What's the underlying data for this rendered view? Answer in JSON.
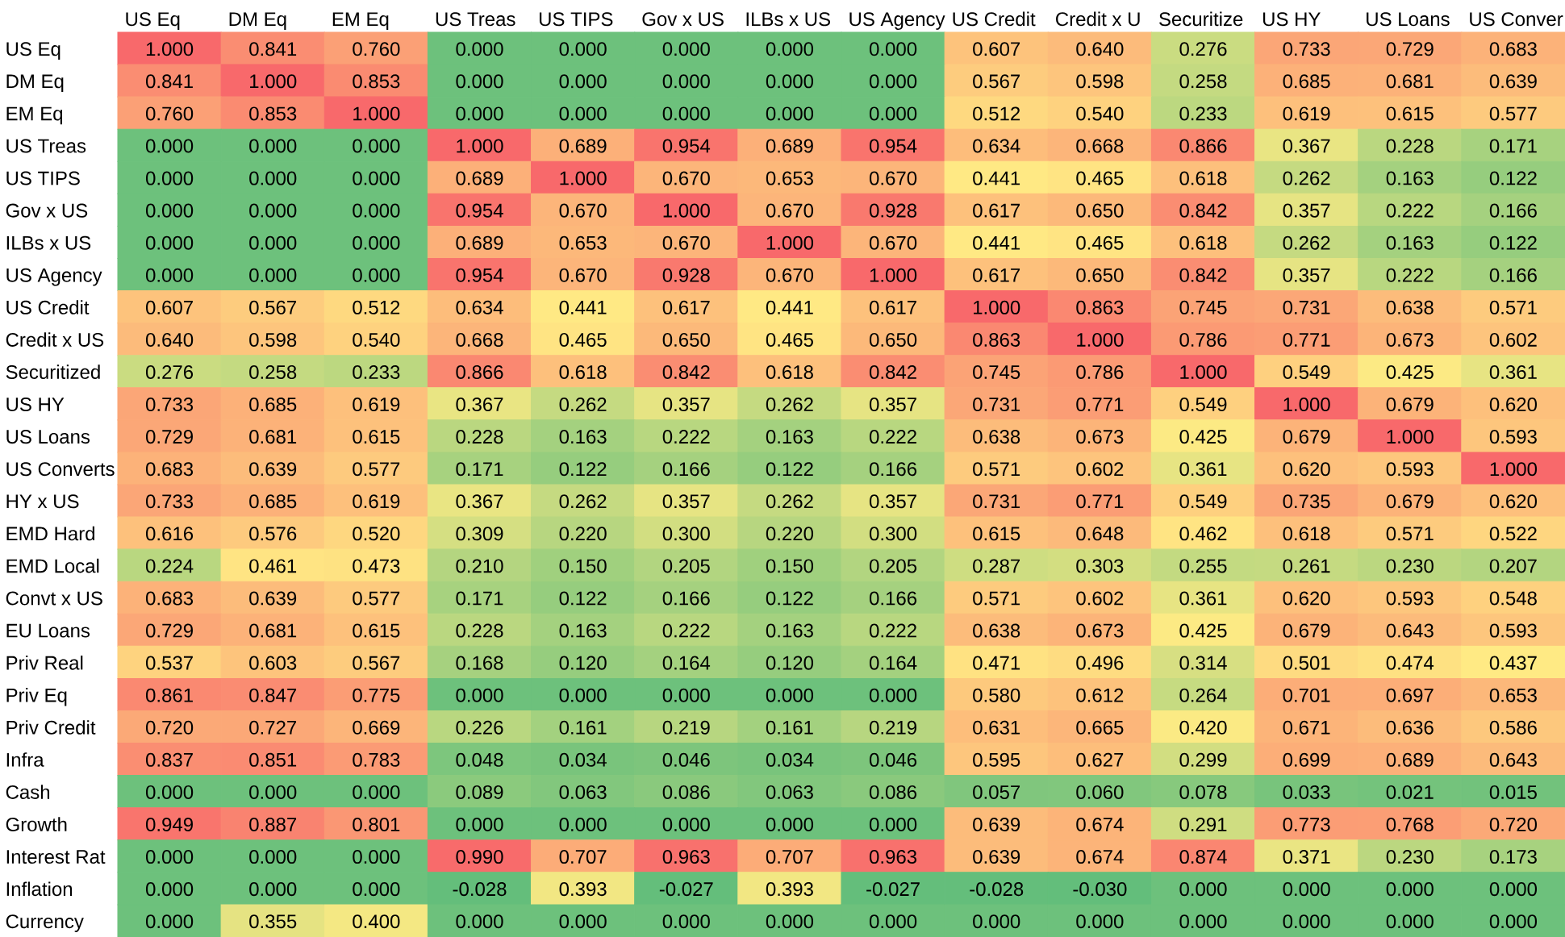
{
  "chart_data": {
    "type": "heatmap",
    "categories": [
      "US Eq",
      "DM Eq",
      "EM Eq",
      "US Treas",
      "US TIPS",
      "Gov x US",
      "ILBs x US",
      "US Agency",
      "US Credit",
      "Credit x U",
      "Securitize",
      "US HY",
      "US Loans",
      "US Conver"
    ],
    "y_categories": [
      "US Eq",
      "DM Eq",
      "EM Eq",
      "US Treas",
      "US TIPS",
      "Gov x US",
      "ILBs x US",
      "US Agency",
      "US Credit",
      "Credit x US",
      "Securitized",
      "US HY",
      "US Loans",
      "US Converts",
      "HY x US",
      "EMD Hard",
      "EMD Local",
      "Convt x US",
      "EU Loans",
      "Priv Real",
      "Priv Eq",
      "Priv Credit",
      "Infra",
      "Cash",
      "Growth",
      "Interest Rat",
      "Inflation",
      "Currency"
    ],
    "cells": [
      [
        1.0,
        0.841,
        0.76,
        0.0,
        0.0,
        0.0,
        0.0,
        0.0,
        0.607,
        0.64,
        0.276,
        0.733,
        0.729,
        0.683
      ],
      [
        0.841,
        1.0,
        0.853,
        0.0,
        0.0,
        0.0,
        0.0,
        0.0,
        0.567,
        0.598,
        0.258,
        0.685,
        0.681,
        0.639
      ],
      [
        0.76,
        0.853,
        1.0,
        0.0,
        0.0,
        0.0,
        0.0,
        0.0,
        0.512,
        0.54,
        0.233,
        0.619,
        0.615,
        0.577
      ],
      [
        0.0,
        0.0,
        0.0,
        1.0,
        0.689,
        0.954,
        0.689,
        0.954,
        0.634,
        0.668,
        0.866,
        0.367,
        0.228,
        0.171
      ],
      [
        0.0,
        0.0,
        0.0,
        0.689,
        1.0,
        0.67,
        0.653,
        0.67,
        0.441,
        0.465,
        0.618,
        0.262,
        0.163,
        0.122
      ],
      [
        0.0,
        0.0,
        0.0,
        0.954,
        0.67,
        1.0,
        0.67,
        0.928,
        0.617,
        0.65,
        0.842,
        0.357,
        0.222,
        0.166
      ],
      [
        0.0,
        0.0,
        0.0,
        0.689,
        0.653,
        0.67,
        1.0,
        0.67,
        0.441,
        0.465,
        0.618,
        0.262,
        0.163,
        0.122
      ],
      [
        0.0,
        0.0,
        0.0,
        0.954,
        0.67,
        0.928,
        0.67,
        1.0,
        0.617,
        0.65,
        0.842,
        0.357,
        0.222,
        0.166
      ],
      [
        0.607,
        0.567,
        0.512,
        0.634,
        0.441,
        0.617,
        0.441,
        0.617,
        1.0,
        0.863,
        0.745,
        0.731,
        0.638,
        0.571
      ],
      [
        0.64,
        0.598,
        0.54,
        0.668,
        0.465,
        0.65,
        0.465,
        0.65,
        0.863,
        1.0,
        0.786,
        0.771,
        0.673,
        0.602
      ],
      [
        0.276,
        0.258,
        0.233,
        0.866,
        0.618,
        0.842,
        0.618,
        0.842,
        0.745,
        0.786,
        1.0,
        0.549,
        0.425,
        0.361
      ],
      [
        0.733,
        0.685,
        0.619,
        0.367,
        0.262,
        0.357,
        0.262,
        0.357,
        0.731,
        0.771,
        0.549,
        1.0,
        0.679,
        0.62
      ],
      [
        0.729,
        0.681,
        0.615,
        0.228,
        0.163,
        0.222,
        0.163,
        0.222,
        0.638,
        0.673,
        0.425,
        0.679,
        1.0,
        0.593
      ],
      [
        0.683,
        0.639,
        0.577,
        0.171,
        0.122,
        0.166,
        0.122,
        0.166,
        0.571,
        0.602,
        0.361,
        0.62,
        0.593,
        1.0
      ],
      [
        0.733,
        0.685,
        0.619,
        0.367,
        0.262,
        0.357,
        0.262,
        0.357,
        0.731,
        0.771,
        0.549,
        0.735,
        0.679,
        0.62
      ],
      [
        0.616,
        0.576,
        0.52,
        0.309,
        0.22,
        0.3,
        0.22,
        0.3,
        0.615,
        0.648,
        0.462,
        0.618,
        0.571,
        0.522
      ],
      [
        0.224,
        0.461,
        0.473,
        0.21,
        0.15,
        0.205,
        0.15,
        0.205,
        0.287,
        0.303,
        0.255,
        0.261,
        0.23,
        0.207
      ],
      [
        0.683,
        0.639,
        0.577,
        0.171,
        0.122,
        0.166,
        0.122,
        0.166,
        0.571,
        0.602,
        0.361,
        0.62,
        0.593,
        0.548
      ],
      [
        0.729,
        0.681,
        0.615,
        0.228,
        0.163,
        0.222,
        0.163,
        0.222,
        0.638,
        0.673,
        0.425,
        0.679,
        0.643,
        0.593
      ],
      [
        0.537,
        0.603,
        0.567,
        0.168,
        0.12,
        0.164,
        0.12,
        0.164,
        0.471,
        0.496,
        0.314,
        0.501,
        0.474,
        0.437
      ],
      [
        0.861,
        0.847,
        0.775,
        0.0,
        0.0,
        0.0,
        0.0,
        0.0,
        0.58,
        0.612,
        0.264,
        0.701,
        0.697,
        0.653
      ],
      [
        0.72,
        0.727,
        0.669,
        0.226,
        0.161,
        0.219,
        0.161,
        0.219,
        0.631,
        0.665,
        0.42,
        0.671,
        0.636,
        0.586
      ],
      [
        0.837,
        0.851,
        0.783,
        0.048,
        0.034,
        0.046,
        0.034,
        0.046,
        0.595,
        0.627,
        0.299,
        0.699,
        0.689,
        0.643
      ],
      [
        0.0,
        0.0,
        0.0,
        0.089,
        0.063,
        0.086,
        0.063,
        0.086,
        0.057,
        0.06,
        0.078,
        0.033,
        0.021,
        0.015
      ],
      [
        0.949,
        0.887,
        0.801,
        0.0,
        0.0,
        0.0,
        0.0,
        0.0,
        0.639,
        0.674,
        0.291,
        0.773,
        0.768,
        0.72
      ],
      [
        0.0,
        0.0,
        0.0,
        0.99,
        0.707,
        0.963,
        0.707,
        0.963,
        0.639,
        0.674,
        0.874,
        0.371,
        0.23,
        0.173
      ],
      [
        0.0,
        0.0,
        0.0,
        -0.028,
        0.393,
        -0.027,
        0.393,
        -0.027,
        -0.028,
        -0.03,
        0.0,
        0.0,
        0.0,
        0.0
      ],
      [
        0.0,
        0.355,
        0.4,
        0.0,
        0.0,
        0.0,
        0.0,
        0.0,
        0.0,
        0.0,
        0.0,
        0.0,
        0.0,
        0.0
      ]
    ],
    "cell_labels": [
      [
        "1.000",
        "0.841",
        "0.760",
        "0.000",
        "0.000",
        "0.000",
        "0.000",
        "0.000",
        "0.607",
        "0.640",
        "0.276",
        "0.733",
        "0.729",
        "0.683"
      ],
      [
        "0.841",
        "1.000",
        "0.853",
        "0.000",
        "0.000",
        "0.000",
        "0.000",
        "0.000",
        "0.567",
        "0.598",
        "0.258",
        "0.685",
        "0.681",
        "0.639"
      ],
      [
        "0.760",
        "0.853",
        "1.000",
        "0.000",
        "0.000",
        "0.000",
        "0.000",
        "0.000",
        "0.512",
        "0.540",
        "0.233",
        "0.619",
        "0.615",
        "0.577"
      ],
      [
        "0.000",
        "0.000",
        "0.000",
        "1.000",
        "0.689",
        "0.954",
        "0.689",
        "0.954",
        "0.634",
        "0.668",
        "0.866",
        "0.367",
        "0.228",
        "0.171"
      ],
      [
        "0.000",
        "0.000",
        "0.000",
        "0.689",
        "1.000",
        "0.670",
        "0.653",
        "0.670",
        "0.441",
        "0.465",
        "0.618",
        "0.262",
        "0.163",
        "0.122"
      ],
      [
        "0.000",
        "0.000",
        "0.000",
        "0.954",
        "0.670",
        "1.000",
        "0.670",
        "0.928",
        "0.617",
        "0.650",
        "0.842",
        "0.357",
        "0.222",
        "0.166"
      ],
      [
        "0.000",
        "0.000",
        "0.000",
        "0.689",
        "0.653",
        "0.670",
        "1.000",
        "0.670",
        "0.441",
        "0.465",
        "0.618",
        "0.262",
        "0.163",
        "0.122"
      ],
      [
        "0.000",
        "0.000",
        "0.000",
        "0.954",
        "0.670",
        "0.928",
        "0.670",
        "1.000",
        "0.617",
        "0.650",
        "0.842",
        "0.357",
        "0.222",
        "0.166"
      ],
      [
        "0.607",
        "0.567",
        "0.512",
        "0.634",
        "0.441",
        "0.617",
        "0.441",
        "0.617",
        "1.000",
        "0.863",
        "0.745",
        "0.731",
        "0.638",
        "0.571"
      ],
      [
        "0.640",
        "0.598",
        "0.540",
        "0.668",
        "0.465",
        "0.650",
        "0.465",
        "0.650",
        "0.863",
        "1.000",
        "0.786",
        "0.771",
        "0.673",
        "0.602"
      ],
      [
        "0.276",
        "0.258",
        "0.233",
        "0.866",
        "0.618",
        "0.842",
        "0.618",
        "0.842",
        "0.745",
        "0.786",
        "1.000",
        "0.549",
        "0.425",
        "0.361"
      ],
      [
        "0.733",
        "0.685",
        "0.619",
        "0.367",
        "0.262",
        "0.357",
        "0.262",
        "0.357",
        "0.731",
        "0.771",
        "0.549",
        "1.000",
        "0.679",
        "0.620"
      ],
      [
        "0.729",
        "0.681",
        "0.615",
        "0.228",
        "0.163",
        "0.222",
        "0.163",
        "0.222",
        "0.638",
        "0.673",
        "0.425",
        "0.679",
        "1.000",
        "0.593"
      ],
      [
        "0.683",
        "0.639",
        "0.577",
        "0.171",
        "0.122",
        "0.166",
        "0.122",
        "0.166",
        "0.571",
        "0.602",
        "0.361",
        "0.620",
        "0.593",
        "1.000"
      ],
      [
        "0.733",
        "0.685",
        "0.619",
        "0.367",
        "0.262",
        "0.357",
        "0.262",
        "0.357",
        "0.731",
        "0.771",
        "0.549",
        "0.735",
        "0.679",
        "0.620"
      ],
      [
        "0.616",
        "0.576",
        "0.520",
        "0.309",
        "0.220",
        "0.300",
        "0.220",
        "0.300",
        "0.615",
        "0.648",
        "0.462",
        "0.618",
        "0.571",
        "0.522"
      ],
      [
        "0.224",
        "0.461",
        "0.473",
        "0.210",
        "0.150",
        "0.205",
        "0.150",
        "0.205",
        "0.287",
        "0.303",
        "0.255",
        "0.261",
        "0.230",
        "0.207"
      ],
      [
        "0.683",
        "0.639",
        "0.577",
        "0.171",
        "0.122",
        "0.166",
        "0.122",
        "0.166",
        "0.571",
        "0.602",
        "0.361",
        "0.620",
        "0.593",
        "0.548"
      ],
      [
        "0.729",
        "0.681",
        "0.615",
        "0.228",
        "0.163",
        "0.222",
        "0.163",
        "0.222",
        "0.638",
        "0.673",
        "0.425",
        "0.679",
        "0.643",
        "0.593"
      ],
      [
        "0.537",
        "0.603",
        "0.567",
        "0.168",
        "0.120",
        "0.164",
        "0.120",
        "0.164",
        "0.471",
        "0.496",
        "0.314",
        "0.501",
        "0.474",
        "0.437"
      ],
      [
        "0.861",
        "0.847",
        "0.775",
        "0.000",
        "0.000",
        "0.000",
        "0.000",
        "0.000",
        "0.580",
        "0.612",
        "0.264",
        "0.701",
        "0.697",
        "0.653"
      ],
      [
        "0.720",
        "0.727",
        "0.669",
        "0.226",
        "0.161",
        "0.219",
        "0.161",
        "0.219",
        "0.631",
        "0.665",
        "0.420",
        "0.671",
        "0.636",
        "0.586"
      ],
      [
        "0.837",
        "0.851",
        "0.783",
        "0.048",
        "0.034",
        "0.046",
        "0.034",
        "0.046",
        "0.595",
        "0.627",
        "0.299",
        "0.699",
        "0.689",
        "0.643"
      ],
      [
        "0.000",
        "0.000",
        "0.000",
        "0.089",
        "0.063",
        "0.086",
        "0.063",
        "0.086",
        "0.057",
        "0.060",
        "0.078",
        "0.033",
        "0.021",
        "0.015"
      ],
      [
        "0.949",
        "0.887",
        "0.801",
        "0.000",
        "0.000",
        "0.000",
        "0.000",
        "0.000",
        "0.639",
        "0.674",
        "0.291",
        "0.773",
        "0.768",
        "0.720"
      ],
      [
        "0.000",
        "0.000",
        "0.000",
        "0.990",
        "0.707",
        "0.963",
        "0.707",
        "0.963",
        "0.639",
        "0.674",
        "0.874",
        "0.371",
        "0.230",
        "0.173"
      ],
      [
        "0.000",
        "0.000",
        "0.000",
        "-0.028",
        "0.393",
        "-0.027",
        "0.393",
        "-0.027",
        "-0.028",
        "-0.030",
        "0.000",
        "0.000",
        "0.000",
        "0.000"
      ],
      [
        "0.000",
        "0.355",
        "0.400",
        "0.000",
        "0.000",
        "0.000",
        "0.000",
        "0.000",
        "0.000",
        "0.000",
        "0.000",
        "0.000",
        "0.000",
        "0.000"
      ]
    ]
  }
}
